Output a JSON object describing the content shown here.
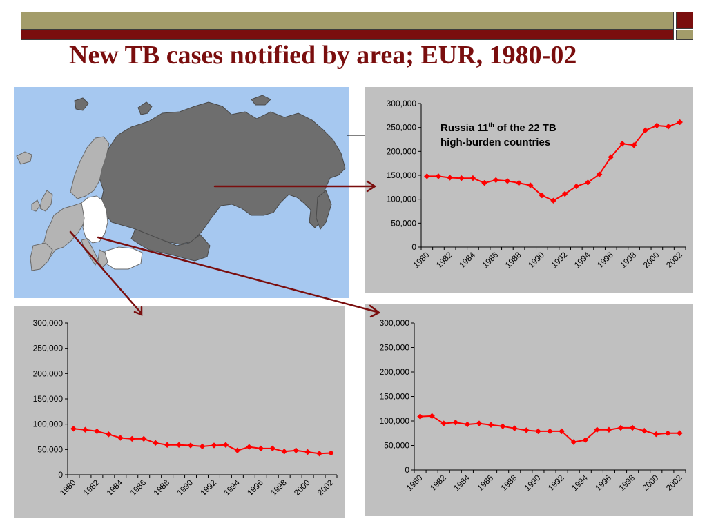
{
  "slide": {
    "title": "New TB cases notified by area; EUR, 1980-02"
  },
  "colors": {
    "band_khaki": "#a39c6a",
    "band_maroon": "#7a0e0e",
    "title": "#7a0e0e",
    "series": "#ff0000",
    "arrow": "#7a0e0e",
    "map_sea": "#a6c8f0",
    "map_dark": "#6e6e6e",
    "map_light": "#b4b4b4",
    "map_white": "#ffffff",
    "panel_bg": "#c0c0c0"
  },
  "annotation": {
    "prefix": "Russia 11",
    "superscript": "th",
    "suffix": " of the 22 TB",
    "line2": "high-burden countries"
  },
  "chart_data": [
    {
      "id": "russia",
      "type": "line",
      "x": [
        1980,
        1981,
        1982,
        1983,
        1984,
        1985,
        1986,
        1987,
        1988,
        1989,
        1990,
        1991,
        1992,
        1993,
        1994,
        1995,
        1996,
        1997,
        1998,
        1999,
        2000,
        2001,
        2002
      ],
      "tick_labels": [
        "1980",
        "1982",
        "1984",
        "1986",
        "1988",
        "1990",
        "1992",
        "1994",
        "1996",
        "1998",
        "2000",
        "2002"
      ],
      "values": [
        148000,
        148000,
        145000,
        144000,
        144000,
        134000,
        140000,
        138000,
        134000,
        129000,
        108000,
        97000,
        111000,
        127000,
        135000,
        152000,
        188000,
        216000,
        213000,
        244000,
        254000,
        252000,
        261000
      ],
      "ylim": [
        0,
        300000
      ],
      "yticks": [
        "0",
        "50,000",
        "100,000",
        "150,000",
        "200,000",
        "250,000",
        "300,000"
      ],
      "title": "",
      "xlabel": "",
      "ylabel": "",
      "grid": false,
      "marker": "diamond"
    },
    {
      "id": "western-europe",
      "type": "line",
      "x": [
        1980,
        1981,
        1982,
        1983,
        1984,
        1985,
        1986,
        1987,
        1988,
        1989,
        1990,
        1991,
        1992,
        1993,
        1994,
        1995,
        1996,
        1997,
        1998,
        1999,
        2000,
        2001,
        2002
      ],
      "tick_labels": [
        "1980",
        "1982",
        "1984",
        "1986",
        "1988",
        "1990",
        "1992",
        "1994",
        "1996",
        "1998",
        "2000",
        "2002"
      ],
      "values": [
        91000,
        89000,
        86000,
        80000,
        73000,
        71000,
        71000,
        63000,
        59000,
        59000,
        58000,
        56000,
        58000,
        59000,
        48000,
        55000,
        52000,
        52000,
        46000,
        48000,
        45000,
        42000,
        43000
      ],
      "ylim": [
        0,
        300000
      ],
      "yticks": [
        "0",
        "50,000",
        "100,000",
        "150,000",
        "200,000",
        "250,000",
        "300,000"
      ],
      "title": "",
      "xlabel": "",
      "ylabel": "",
      "grid": false,
      "marker": "diamond"
    },
    {
      "id": "central-europe",
      "type": "line",
      "x": [
        1980,
        1981,
        1982,
        1983,
        1984,
        1985,
        1986,
        1987,
        1988,
        1989,
        1990,
        1991,
        1992,
        1993,
        1994,
        1995,
        1996,
        1997,
        1998,
        1999,
        2000,
        2001,
        2002
      ],
      "tick_labels": [
        "1980",
        "1982",
        "1984",
        "1986",
        "1988",
        "1990",
        "1992",
        "1994",
        "1996",
        "1998",
        "2000",
        "2002"
      ],
      "values": [
        109000,
        110000,
        95000,
        97000,
        93000,
        95000,
        92000,
        89000,
        85000,
        81000,
        79000,
        79000,
        79000,
        57000,
        61000,
        82000,
        82000,
        86000,
        86000,
        80000,
        73000,
        75000,
        75000
      ],
      "ylim": [
        0,
        300000
      ],
      "yticks": [
        "0",
        "50,000",
        "100,000",
        "150,000",
        "200,000",
        "250,000",
        "300,000"
      ],
      "title": "",
      "xlabel": "",
      "ylabel": "",
      "grid": false,
      "marker": "diamond"
    }
  ]
}
